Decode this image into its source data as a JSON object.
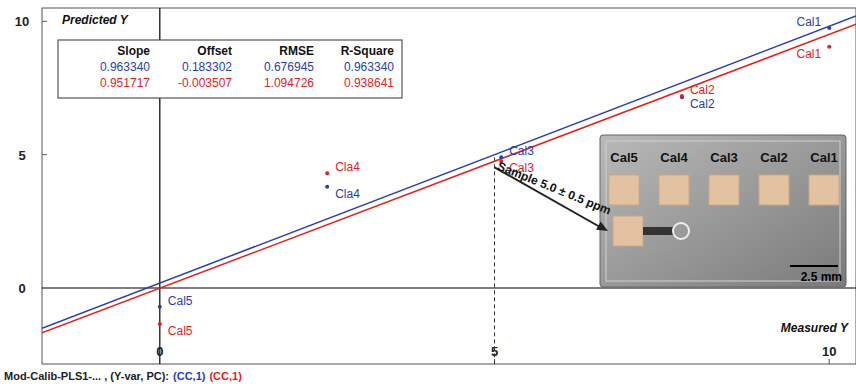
{
  "chart_data": {
    "type": "scatter",
    "x_label": "Measured Y",
    "y_label": "Predicted Y",
    "xlim": [
      -1.76,
      10.4
    ],
    "ylim": [
      -2.85,
      10.5
    ],
    "xticks": [
      0,
      5,
      10
    ],
    "yticks": [
      0,
      5,
      10
    ],
    "grid": false,
    "series": [
      {
        "name": "(CC,1)",
        "type": "scatter",
        "marker": "dot",
        "color": "#2b3db4",
        "x": [
          10,
          7.8,
          5.1,
          2.5,
          0
        ],
        "values": [
          9.75,
          7.15,
          4.9,
          3.8,
          -0.7
        ],
        "labels": [
          "Cal1",
          "Cal2",
          "Cal3",
          "Cla4",
          "Cal5"
        ]
      },
      {
        "name": "(CC,1)",
        "type": "scatter",
        "marker": "dot",
        "color": "#e3221f",
        "x": [
          10,
          7.8,
          5.1,
          2.5,
          0
        ],
        "values": [
          9.05,
          7.2,
          4.75,
          4.3,
          -1.35
        ],
        "labels": [
          "Cal1",
          "Cal2",
          "Cal3",
          "Cla4",
          "Cal5"
        ]
      },
      {
        "type": "line",
        "line_style": "solid",
        "color": "#2b3db4",
        "x": [
          -1.76,
          10.4
        ],
        "values": [
          -1.51,
          10.2
        ]
      },
      {
        "type": "line",
        "line_style": "solid",
        "color": "#e3221f",
        "x": [
          -1.76,
          10.4
        ],
        "values": [
          -1.68,
          9.89
        ]
      }
    ],
    "stats_table": {
      "columns": [
        "Slope",
        "Offset",
        "RMSE",
        "R-Square"
      ],
      "rows": [
        {
          "color": "#2b3db4",
          "cells": [
            "0.963340",
            "0.183302",
            "0.676945",
            "0.963340"
          ]
        },
        {
          "color": "#e3221f",
          "cells": [
            "0.951717",
            "-0.003507",
            "1.094726",
            "0.938641"
          ]
        }
      ]
    },
    "annotation": {
      "text": "Sample 5.0 ± 0.5 ppm",
      "x": 5,
      "y": 4.9,
      "line_style": "dashed"
    },
    "inset": {
      "labels": [
        "Cal5",
        "Cal4",
        "Cal3",
        "Cal2",
        "Cal1"
      ],
      "scale_bar": "2.5 mm"
    },
    "footer": "Mod-Calib-PLS1-... , (Y-var, PC):"
  }
}
